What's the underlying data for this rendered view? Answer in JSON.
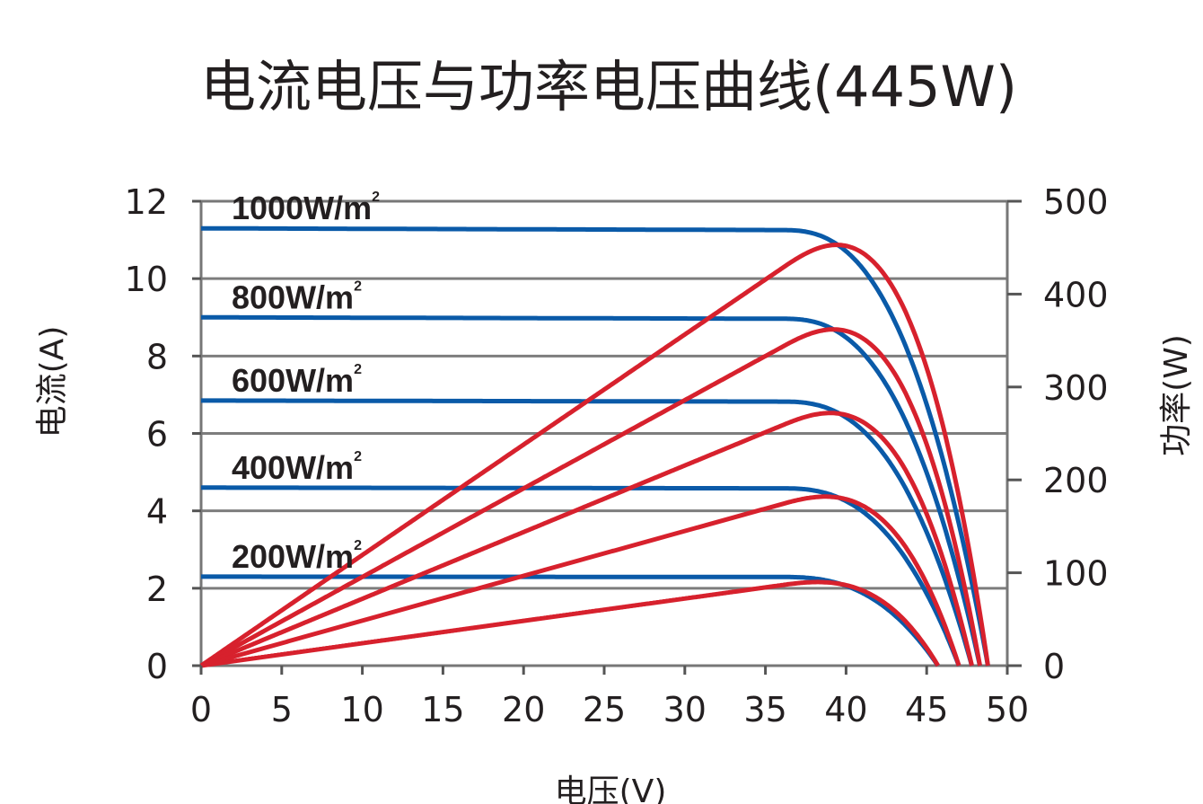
{
  "chart_data": {
    "type": "line",
    "title": "电流电压与功率电压曲线(445W)",
    "xlabel": "电压(V)",
    "ylabel": "电流(A)",
    "y2label": "功率(W)",
    "xlim": [
      0,
      50
    ],
    "ylim": [
      0,
      12
    ],
    "y2lim": [
      0,
      500
    ],
    "x_ticks": [
      "0",
      "5",
      "10",
      "15",
      "20",
      "25",
      "30",
      "35",
      "40",
      "45",
      "50"
    ],
    "y_ticks": [
      "0",
      "2",
      "4",
      "6",
      "8",
      "10",
      "12"
    ],
    "y2_ticks": [
      "0",
      "100",
      "200",
      "300",
      "400",
      "500"
    ],
    "grid": true,
    "series": [
      {
        "name": "1000W/m²",
        "label_text": "1000W/m",
        "label_sup": "2",
        "isc": 11.3,
        "voc": 48.8,
        "vknee": 36,
        "vmp": 40.5,
        "pmax": 453,
        "current_color": "#0a5aa8",
        "power_color": "#d7212d"
      },
      {
        "name": "800W/m²",
        "label_text": "800W/m",
        "label_sup": "2",
        "isc": 9.0,
        "voc": 48.3,
        "vknee": 36,
        "vmp": 40.0,
        "pmax": 362,
        "current_color": "#0a5aa8",
        "power_color": "#d7212d"
      },
      {
        "name": "600W/m²",
        "label_text": "600W/m",
        "label_sup": "2",
        "isc": 6.85,
        "voc": 47.8,
        "vknee": 36,
        "vmp": 40.0,
        "pmax": 272,
        "current_color": "#0a5aa8",
        "power_color": "#d7212d"
      },
      {
        "name": "400W/m²",
        "label_text": "400W/m",
        "label_sup": "2",
        "isc": 4.6,
        "voc": 47.0,
        "vknee": 36,
        "vmp": 40.0,
        "pmax": 182,
        "current_color": "#0a5aa8",
        "power_color": "#d7212d"
      },
      {
        "name": "200W/m²",
        "label_text": "200W/m",
        "label_sup": "2",
        "isc": 2.3,
        "voc": 45.7,
        "vknee": 36,
        "vmp": 39.0,
        "pmax": 90,
        "current_color": "#0a5aa8",
        "power_color": "#d7212d"
      }
    ]
  }
}
